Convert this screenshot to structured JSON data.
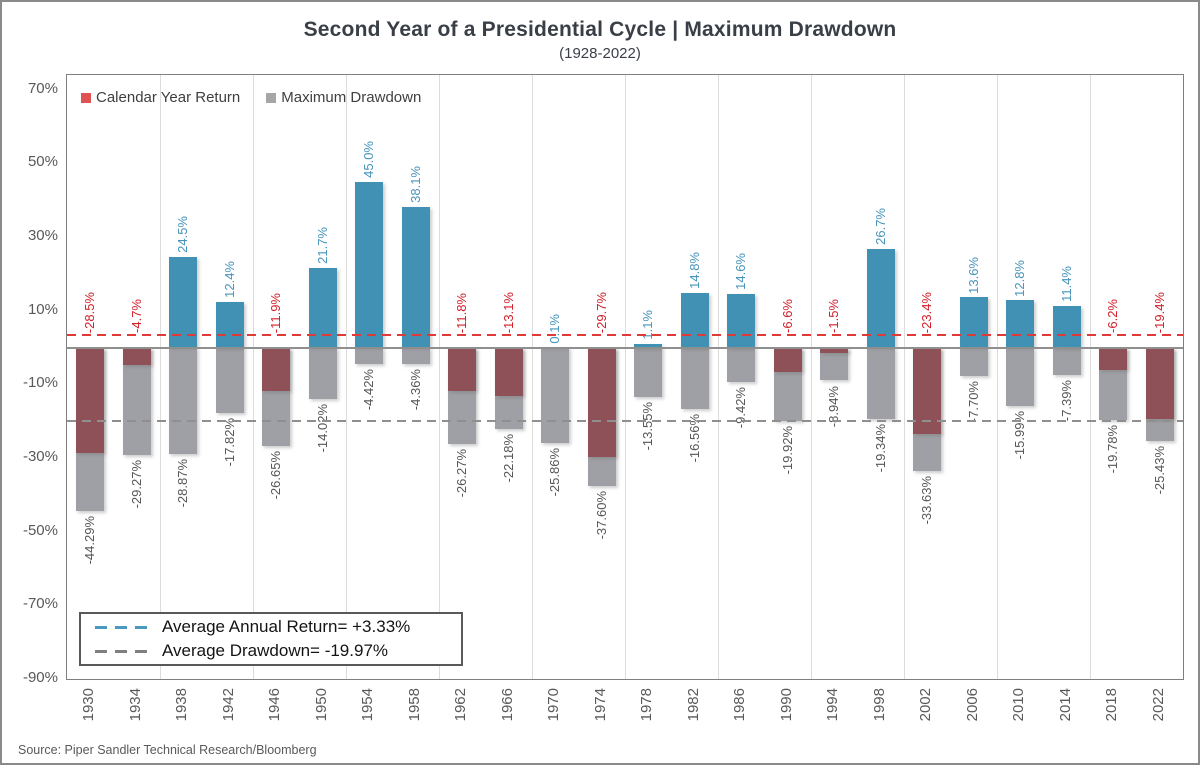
{
  "page": {
    "title": "Second Year of a Presidential Cycle | Maximum Drawdown",
    "subtitle": "(1928-2022)",
    "source": "Source: Piper Sandler Technical Research/Bloomberg"
  },
  "legend": {
    "return_label": "Calendar Year Return",
    "drawdown_label": "Maximum Drawdown"
  },
  "avg_box": {
    "return_line": "Average Annual Return= +3.33%",
    "drawdown_line": "Average Drawdown= -19.97%"
  },
  "colors": {
    "positive_bar": "#4191b4",
    "negative_bar": "#8e5158",
    "drawdown_bar": "#9fa0a5",
    "positive_label": "#4794bb",
    "negative_label": "#d31f2a",
    "drawdown_label": "#565656",
    "avg_return_line_chart": "#e03a36",
    "avg_drawdown_line_chart": "#8f8f8f",
    "avg_return_dash_legend": "#4a9ac0",
    "avg_drawdown_dash_legend": "#7f7f7f",
    "legend_return_swatch": "#e05252",
    "legend_drawdown_swatch": "#a6a6a6"
  },
  "chart_data": {
    "type": "bar",
    "title": "Second Year of a Presidential Cycle | Maximum Drawdown",
    "subtitle": "(1928-2022)",
    "categories": [
      "1930",
      "1934",
      "1938",
      "1942",
      "1946",
      "1950",
      "1954",
      "1958",
      "1962",
      "1966",
      "1970",
      "1974",
      "1978",
      "1982",
      "1986",
      "1990",
      "1994",
      "1998",
      "2002",
      "2006",
      "2010",
      "2014",
      "2018",
      "2022"
    ],
    "series": [
      {
        "name": "Calendar Year Return",
        "values": [
          -28.5,
          -4.7,
          24.5,
          12.4,
          -11.9,
          21.7,
          45.0,
          38.1,
          -11.8,
          -13.1,
          0.1,
          -29.7,
          1.1,
          14.8,
          14.6,
          -6.6,
          -1.5,
          26.7,
          -23.4,
          13.6,
          12.8,
          11.4,
          -6.2,
          -19.4
        ],
        "labels": [
          "-28.5%",
          "-4.7%",
          "24.5%",
          "12.4%",
          "-11.9%",
          "21.7%",
          "45.0%",
          "38.1%",
          "-11.8%",
          "-13.1%",
          "0.1%",
          "-29.7%",
          "1.1%",
          "14.8%",
          "14.6%",
          "-6.6%",
          "-1.5%",
          "26.7%",
          "-23.4%",
          "13.6%",
          "12.8%",
          "11.4%",
          "-6.2%",
          "-19.4%"
        ]
      },
      {
        "name": "Maximum Drawdown",
        "values": [
          -44.29,
          -29.27,
          -28.87,
          -17.82,
          -26.65,
          -14.02,
          -4.42,
          -4.36,
          -26.27,
          -22.18,
          -25.86,
          -37.6,
          -13.55,
          -16.56,
          -9.42,
          -19.92,
          -8.94,
          -19.34,
          -33.63,
          -7.7,
          -15.99,
          -7.39,
          -19.78,
          -25.43
        ],
        "labels": [
          "-44.29%",
          "-29.27%",
          "-28.87%",
          "-17.82%",
          "-26.65%",
          "-14.02%",
          "-4.42%",
          "-4.36%",
          "-26.27%",
          "-22.18%",
          "-25.86%",
          "-37.60%",
          "-13.55%",
          "-16.56%",
          "-9.42%",
          "-19.92%",
          "-8.94%",
          "-19.34%",
          "-33.63%",
          "-7.70%",
          "-15.99%",
          "-7.39%",
          "-19.78%",
          "-25.43%"
        ]
      }
    ],
    "avg_annual_return": 3.33,
    "avg_drawdown": -19.97,
    "ylim": [
      -90,
      74
    ],
    "ytick_values": [
      70,
      50,
      30,
      10,
      -10,
      -30,
      -50,
      -70,
      -90
    ],
    "ytick_labels": [
      "70%",
      "50%",
      "30%",
      "10%",
      "-10%",
      "-30%",
      "-50%",
      "-70%",
      "-90%"
    ],
    "grid": "vertical-every-2-categories",
    "legend_position": "top-left-inside"
  }
}
